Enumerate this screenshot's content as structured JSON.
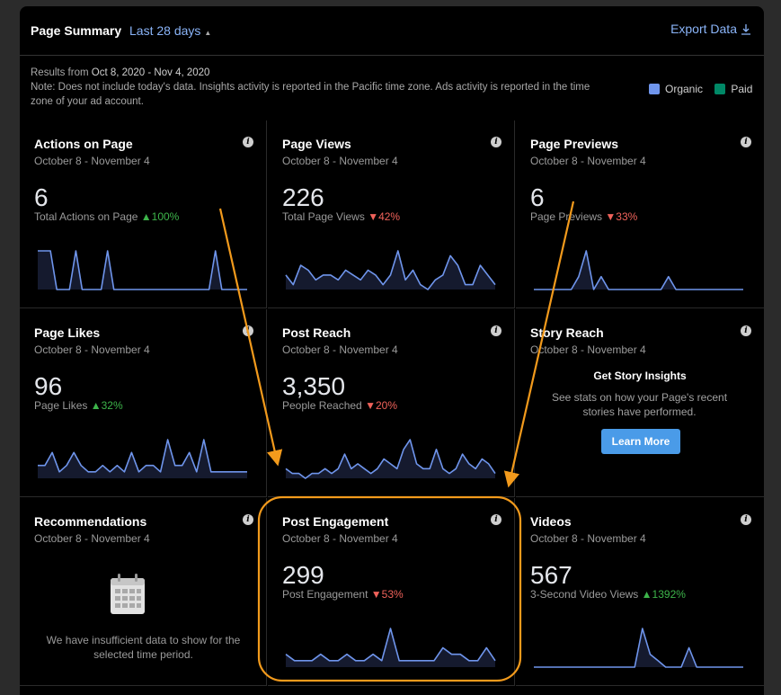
{
  "header": {
    "title": "Page Summary",
    "range": "Last 28 days",
    "export_label": "Export Data"
  },
  "notes": {
    "results_prefix": "Results from ",
    "results_range": "Oct 8, 2020 - Nov 4, 2020",
    "note": "Note: Does not include today's data. Insights activity is reported in the Pacific time zone. Ads activity is reported in the time zone of your ad account."
  },
  "legend": {
    "organic_label": "Organic",
    "paid_label": "Paid",
    "organic_color": "#6f95ec",
    "paid_color": "#008866"
  },
  "cards": {
    "actions": {
      "title": "Actions on Page",
      "date": "October 8 - November 4",
      "value": "6",
      "metric_label": "Total Actions on Page",
      "change": "100%",
      "direction": "up",
      "series": [
        1,
        1,
        1,
        0,
        0,
        0,
        1,
        0,
        0,
        0,
        0,
        1,
        0,
        0,
        0,
        0,
        0,
        0,
        0,
        0,
        0,
        0,
        0,
        0,
        0,
        0,
        0,
        0,
        1,
        0,
        0,
        0,
        0,
        0
      ]
    },
    "views": {
      "title": "Page Views",
      "date": "October 8 - November 4",
      "value": "226",
      "metric_label": "Total Page Views",
      "change": "42%",
      "direction": "down",
      "series": [
        3,
        1,
        5,
        4,
        2,
        3,
        3,
        2,
        4,
        3,
        2,
        4,
        3,
        1,
        3,
        8,
        2,
        4,
        1,
        0,
        2,
        3,
        7,
        5,
        1,
        1,
        5,
        3,
        1
      ]
    },
    "previews": {
      "title": "Page Previews",
      "date": "October 8 - November 4",
      "value": "6",
      "metric_label": "Page Previews",
      "change": "33%",
      "direction": "down",
      "series": [
        0,
        0,
        0,
        0,
        0,
        0,
        1,
        3,
        0,
        1,
        0,
        0,
        0,
        0,
        0,
        0,
        0,
        0,
        1,
        0,
        0,
        0,
        0,
        0,
        0,
        0,
        0,
        0,
        0
      ]
    },
    "likes": {
      "title": "Page Likes",
      "date": "October 8 - November 4",
      "value": "96",
      "metric_label": "Page Likes",
      "change": "32%",
      "direction": "up",
      "series": [
        2,
        2,
        4,
        1,
        2,
        4,
        2,
        1,
        1,
        2,
        1,
        2,
        1,
        4,
        1,
        2,
        2,
        1,
        6,
        2,
        2,
        4,
        1,
        6,
        1,
        1,
        1,
        1,
        1,
        1
      ]
    },
    "reach": {
      "title": "Post Reach",
      "date": "October 8 - November 4",
      "value": "3,350",
      "metric_label": "People Reached",
      "change": "20%",
      "direction": "down",
      "series": [
        2,
        1,
        1,
        0,
        1,
        1,
        2,
        1,
        2,
        5,
        2,
        3,
        2,
        1,
        2,
        4,
        3,
        2,
        6,
        8,
        3,
        2,
        2,
        6,
        2,
        1,
        2,
        5,
        3,
        2,
        4,
        3,
        1
      ]
    },
    "story": {
      "title": "Story Reach",
      "date": "October 8 - November 4",
      "heading": "Get Story Insights",
      "text": "See stats on how your Page's recent stories have performed.",
      "button": "Learn More"
    },
    "recommendations": {
      "title": "Recommendations",
      "date": "October 8 - November 4",
      "message": "We have insufficient data to show for the selected time period."
    },
    "engagement": {
      "title": "Post Engagement",
      "date": "October 8 - November 4",
      "value": "299",
      "metric_label": "Post Engagement",
      "change": "53%",
      "direction": "down",
      "series": [
        2,
        1,
        1,
        1,
        2,
        1,
        1,
        2,
        1,
        1,
        2,
        1,
        6,
        1,
        1,
        1,
        1,
        1,
        3,
        2,
        2,
        1,
        1,
        3,
        1
      ]
    },
    "videos": {
      "title": "Videos",
      "date": "October 8 - November 4",
      "value": "567",
      "metric_label": "3-Second Video Views",
      "change": "1392%",
      "direction": "up",
      "series": [
        0,
        0,
        0,
        0,
        0,
        0,
        0,
        0,
        0,
        0,
        0,
        0,
        0,
        0,
        6,
        2,
        1,
        0,
        0,
        0,
        3,
        0,
        0,
        0,
        0,
        0,
        0,
        0
      ]
    }
  }
}
